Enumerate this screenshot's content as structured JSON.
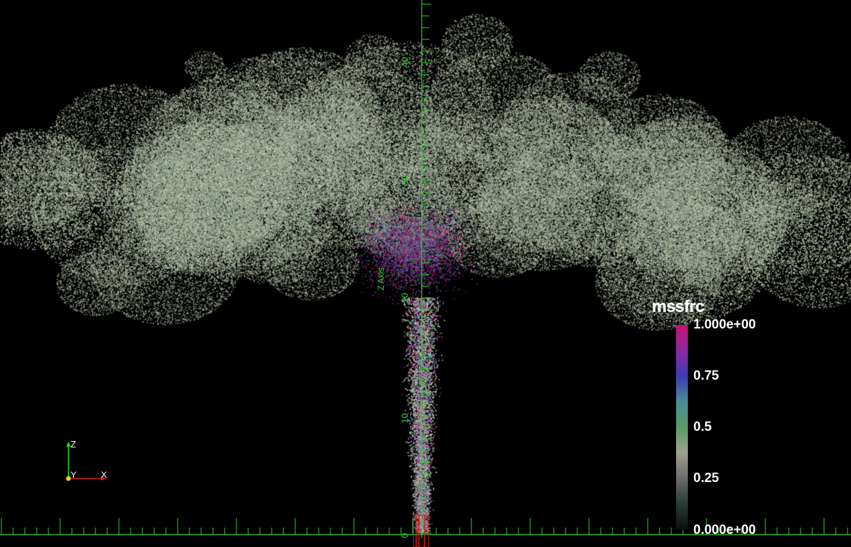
{
  "colorbar": {
    "title": "mssfrc",
    "labels": [
      "1.000e+00",
      "0.75",
      "0.5",
      "0.25",
      "0.000e+00"
    ],
    "stops": [
      "#c8146e",
      "#8c28a0",
      "#3c3cb4",
      "#4a8c96",
      "#5a9a64",
      "#a0a090",
      "#6a6a6a",
      "#2a3a34",
      "#0a0e0c"
    ]
  },
  "z_axis": {
    "title": "Z Axis",
    "ticks": [
      "0",
      "10",
      "20",
      "30",
      "40"
    ],
    "color": "#2bd62b"
  },
  "orientation_axes": {
    "z": "Z",
    "y": "Y",
    "x": "X"
  }
}
